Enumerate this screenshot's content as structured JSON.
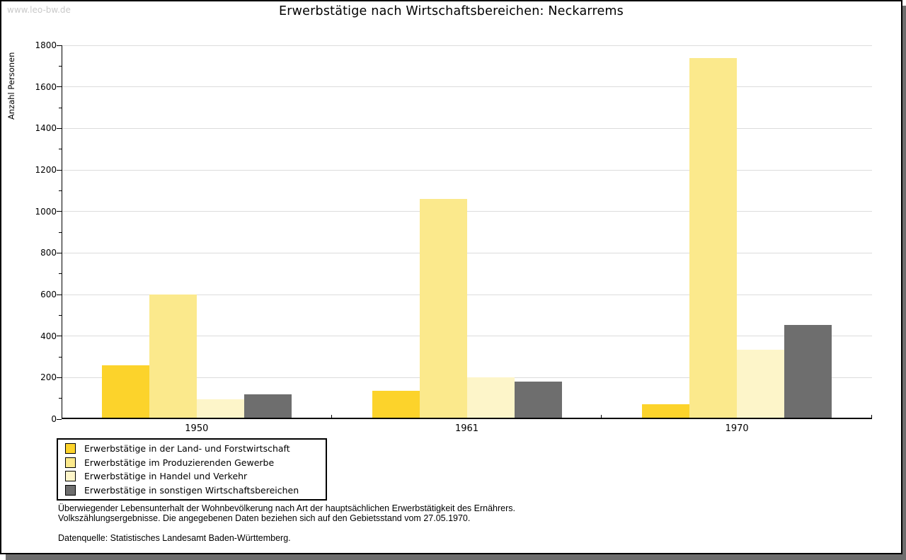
{
  "watermark": "www.leo-bw.de",
  "chart_data": {
    "type": "bar",
    "title": "Erwerbstätige nach Wirtschaftsbereichen: Neckarrems",
    "xlabel": "",
    "ylabel": "Anzahl Personen",
    "categories": [
      "1950",
      "1961",
      "1970"
    ],
    "series": [
      {
        "name": "Erwerbstätige in der Land- und Forstwirtschaft",
        "color": "#fcd32b",
        "values": [
          260,
          135,
          70
        ]
      },
      {
        "name": "Erwerbstätige im Produzierenden Gewerbe",
        "color": "#fbe98c",
        "values": [
          600,
          1060,
          1740
        ]
      },
      {
        "name": "Erwerbstätige in Handel und Verkehr",
        "color": "#fdf5c9",
        "values": [
          95,
          200,
          335
        ]
      },
      {
        "name": "Erwerbstätige in sonstigen Wirtschaftsbereichen",
        "color": "#6e6e6e",
        "values": [
          120,
          180,
          455
        ]
      }
    ],
    "ylim": [
      0,
      1800
    ],
    "ytick_step": 200,
    "yminor_step": 100,
    "grid": true,
    "legend_position": "bottom-left"
  },
  "footnotes": {
    "line1": "Überwiegender Lebensunterhalt der Wohnbevölkerung nach Art der hauptsächlichen Erwerbstätigkeit des Ernährers.",
    "line2": "Volkszählungsergebnisse. Die angegebenen Daten beziehen sich auf den Gebietsstand vom 27.05.1970.",
    "source": "Datenquelle: Statistisches Landesamt Baden-Württemberg."
  },
  "colors": {
    "grid": "#dcdcdc",
    "axis": "#000000",
    "shadow": "#6e6e6e",
    "watermark": "#c9c9c9"
  }
}
